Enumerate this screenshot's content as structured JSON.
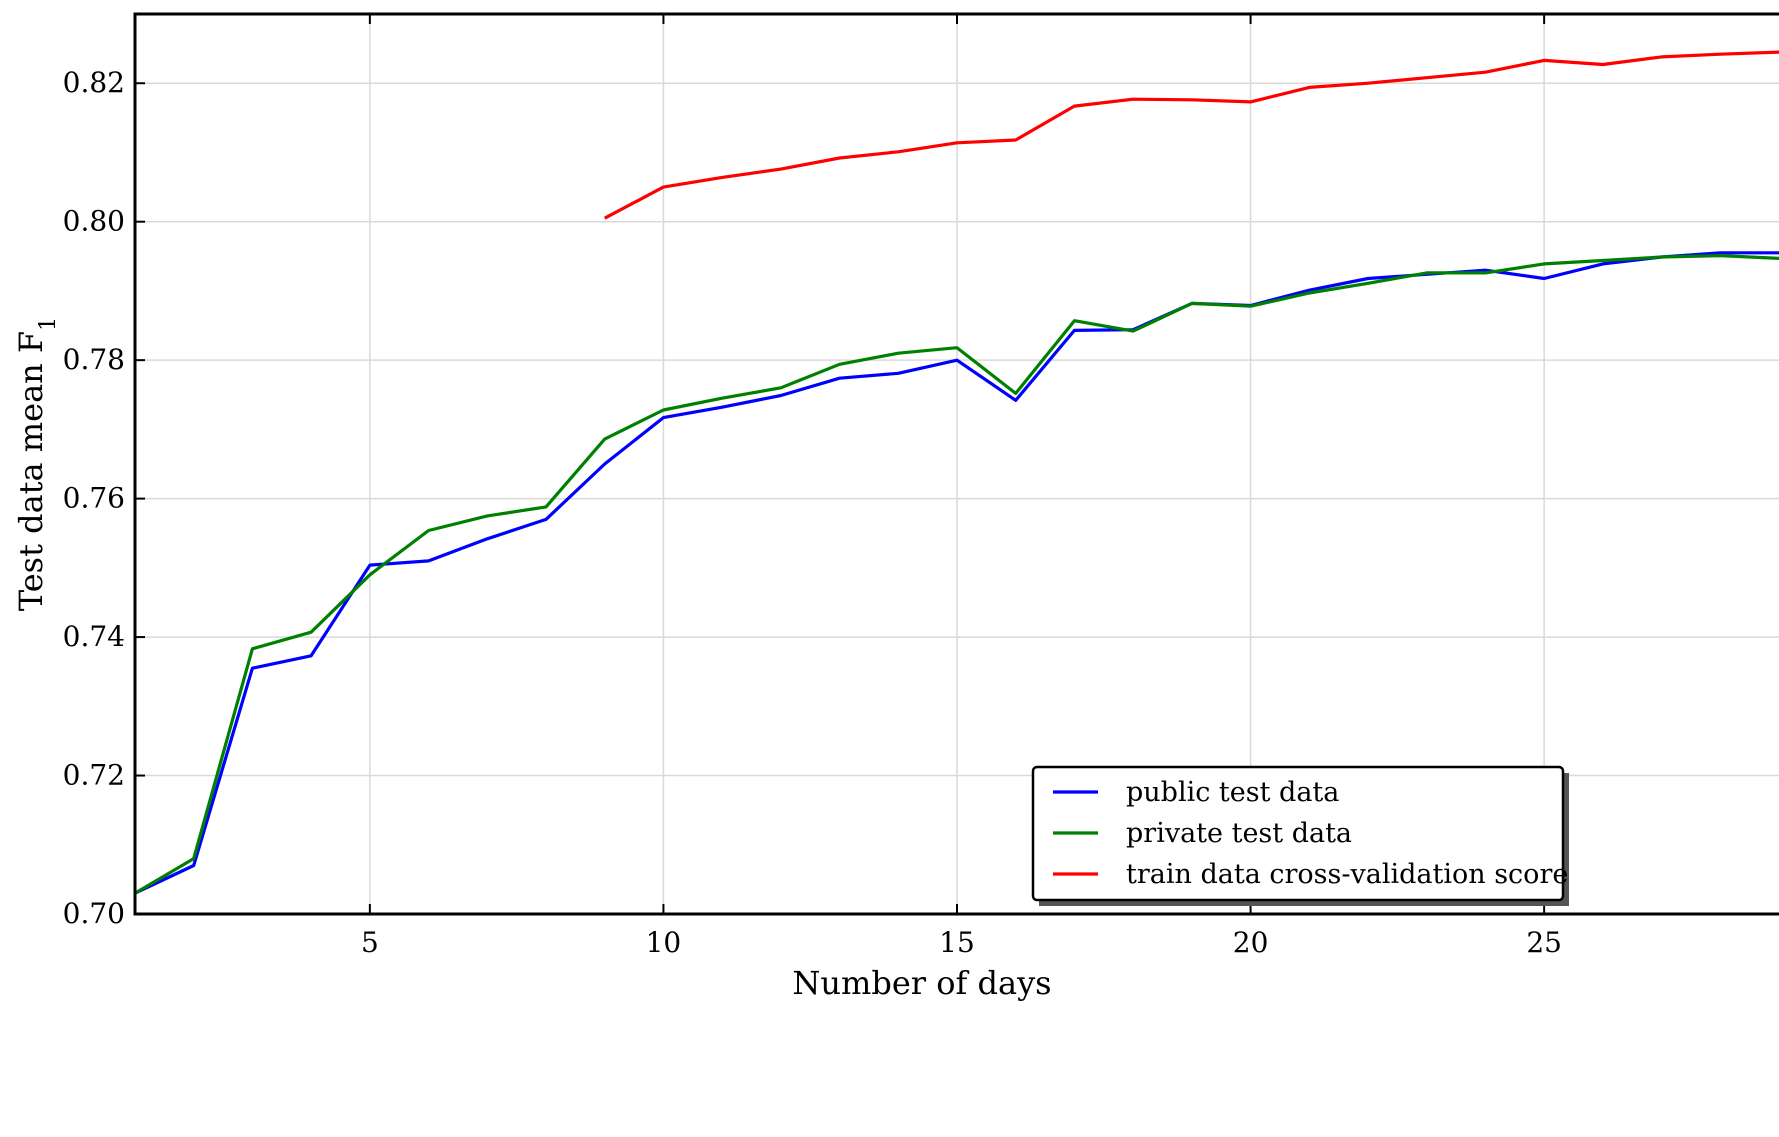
{
  "chart_data": {
    "type": "line",
    "xlabel": "Number of days",
    "ylabel": "Test data mean F",
    "ylabel_subscript": "1",
    "xlim": [
      1,
      29
    ],
    "ylim": [
      0.7,
      0.83
    ],
    "x_ticks": [
      5,
      10,
      15,
      20,
      25
    ],
    "x_tick_labels": [
      "5",
      "10",
      "15",
      "20",
      "25"
    ],
    "y_ticks": [
      0.7,
      0.72,
      0.74,
      0.76,
      0.78,
      0.8,
      0.82
    ],
    "y_tick_labels": [
      "0.70",
      "0.72",
      "0.74",
      "0.76",
      "0.78",
      "0.80",
      "0.82"
    ],
    "grid": true,
    "legend_position": "bottom-right",
    "series": [
      {
        "name": "public test data",
        "color": "#0000ff",
        "x": [
          1,
          2,
          3,
          4,
          5,
          6,
          7,
          8,
          9,
          10,
          11,
          12,
          13,
          14,
          15,
          16,
          17,
          18,
          19,
          20,
          21,
          22,
          23,
          24,
          25,
          26,
          27,
          28,
          29
        ],
        "y": [
          0.703,
          0.707,
          0.7355,
          0.7373,
          0.7504,
          0.751,
          0.7542,
          0.757,
          0.765,
          0.7717,
          0.7732,
          0.7749,
          0.7774,
          0.7781,
          0.78,
          0.7742,
          0.7843,
          0.7844,
          0.7882,
          0.7879,
          0.7901,
          0.7918,
          0.7924,
          0.793,
          0.7918,
          0.7939,
          0.7949,
          0.7955,
          0.7955
        ]
      },
      {
        "name": "private test data",
        "color": "#008000",
        "x": [
          1,
          2,
          3,
          4,
          5,
          6,
          7,
          8,
          9,
          10,
          11,
          12,
          13,
          14,
          15,
          16,
          17,
          18,
          19,
          20,
          21,
          22,
          23,
          24,
          25,
          26,
          27,
          28,
          29
        ],
        "y": [
          0.703,
          0.708,
          0.7383,
          0.7407,
          0.749,
          0.7554,
          0.7575,
          0.7588,
          0.7686,
          0.7728,
          0.7745,
          0.776,
          0.7794,
          0.781,
          0.7818,
          0.7752,
          0.7857,
          0.7842,
          0.7882,
          0.7878,
          0.7897,
          0.7911,
          0.7926,
          0.7926,
          0.7939,
          0.7944,
          0.7949,
          0.7951,
          0.7947
        ]
      },
      {
        "name": "train data cross-validation score",
        "color": "#ff0000",
        "x": [
          9,
          10,
          11,
          12,
          13,
          14,
          15,
          16,
          17,
          18,
          19,
          20,
          21,
          22,
          23,
          24,
          25,
          26,
          27,
          28,
          29
        ],
        "y": [
          0.8005,
          0.805,
          0.8064,
          0.8076,
          0.8092,
          0.8101,
          0.8114,
          0.8118,
          0.8167,
          0.8177,
          0.8176,
          0.8173,
          0.8194,
          0.82,
          0.8208,
          0.8216,
          0.8233,
          0.8227,
          0.8238,
          0.8242,
          0.8245
        ]
      }
    ]
  }
}
